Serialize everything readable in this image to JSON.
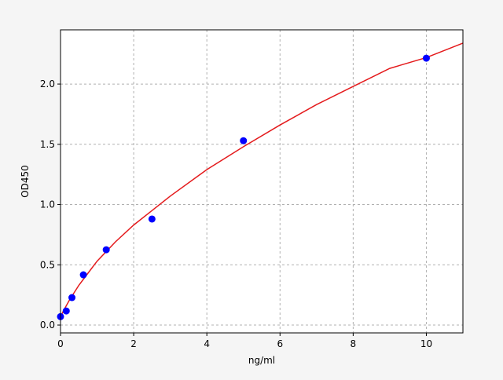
{
  "chart_data": {
    "type": "scatter",
    "title": "",
    "xlabel": "ng/ml",
    "ylabel": "OD450",
    "xlim": [
      0,
      11
    ],
    "ylim": [
      -0.065,
      2.45
    ],
    "xticks": [
      0,
      2,
      4,
      6,
      8,
      10
    ],
    "xtick_labels": [
      "0",
      "2",
      "4",
      "6",
      "8",
      "10"
    ],
    "yticks": [
      0.0,
      0.5,
      1.0,
      1.5,
      2.0
    ],
    "ytick_labels": [
      "0.0",
      "0.5",
      "1.0",
      "1.5",
      "2.0"
    ],
    "grid": true,
    "points": {
      "color": "#0000ff",
      "x": [
        0,
        0.156,
        0.3125,
        0.625,
        1.25,
        2.5,
        5,
        10
      ],
      "y": [
        0.07,
        0.117,
        0.228,
        0.417,
        0.625,
        0.88,
        1.53,
        2.215
      ]
    },
    "fit_curve": {
      "color": "#e41a1c",
      "x": [
        0,
        0.1,
        0.25,
        0.5,
        0.75,
        1,
        1.5,
        2,
        2.5,
        3,
        4,
        5,
        6,
        7,
        8,
        9,
        10,
        11
      ],
      "y": [
        0.07,
        0.13,
        0.21,
        0.33,
        0.43,
        0.53,
        0.69,
        0.83,
        0.95,
        1.07,
        1.29,
        1.48,
        1.66,
        1.83,
        1.98,
        2.13,
        2.22,
        2.34
      ]
    }
  }
}
